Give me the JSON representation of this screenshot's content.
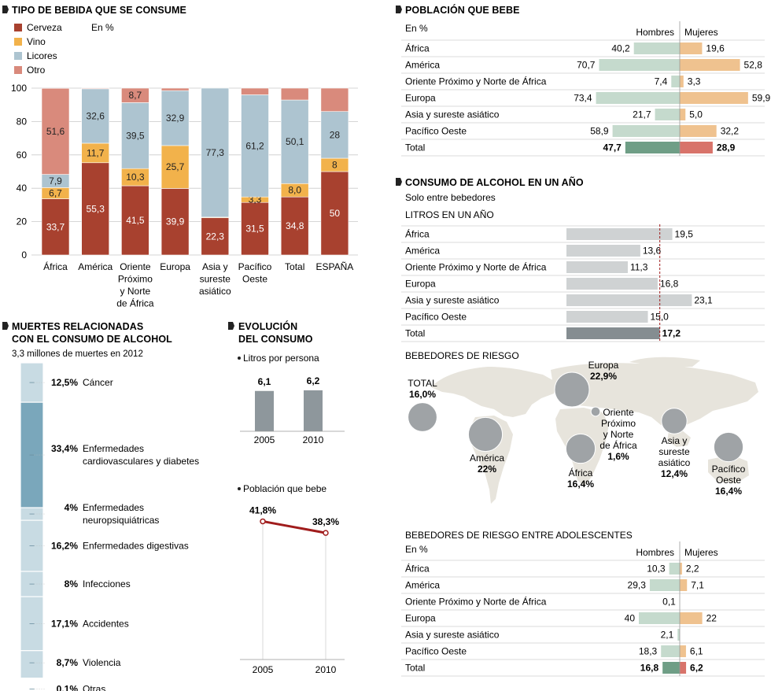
{
  "colors": {
    "cerveza": "#a8412f",
    "vino": "#f2b24b",
    "licores": "#adc4d0",
    "otro": "#d98a7c",
    "hombres": "#c5dacd",
    "hombres_total": "#6f9e86",
    "mujeres": "#efc28f",
    "mujeres_total": "#d8736a",
    "litros": "#cfd2d3",
    "litros_total": "#858d91",
    "map_land": "#e7e4dc",
    "map_bubble": "#9fa3a6",
    "death_light": "#c8dbe3",
    "death_dark": "#7aa7bb",
    "evo_bar": "#8e979c",
    "evo_line": "#a01c1c"
  },
  "tipo": {
    "title": "TIPO DE BEBIDA QUE SE CONSUME",
    "unit": "En %",
    "chart_data": {
      "type": "bar",
      "stacked": true,
      "categories": [
        "África",
        "América",
        "Oriente Próximo y Norte de África",
        "Europa",
        "Asia y sureste asiático",
        "Pacífico Oeste",
        "Total",
        "ESPAÑA"
      ],
      "category_lines": [
        [
          "África"
        ],
        [
          "América"
        ],
        [
          "Oriente",
          "Próximo",
          "y Norte",
          "de África"
        ],
        [
          "Europa"
        ],
        [
          "Asia y",
          "sureste",
          "asiático"
        ],
        [
          "Pacífico",
          "Oeste"
        ],
        [
          "Total"
        ],
        [
          "ESPAÑA"
        ]
      ],
      "series": [
        {
          "name": "Cerveza",
          "values": [
            33.7,
            55.3,
            41.5,
            39.9,
            22.3,
            31.5,
            34.8,
            50
          ],
          "labels": [
            "33,7",
            "55,3",
            "41,5",
            "39,9",
            "22,3",
            "31,5",
            "34,8",
            "50"
          ]
        },
        {
          "name": "Vino",
          "values": [
            6.7,
            11.7,
            10.3,
            25.7,
            0.4,
            3.3,
            8.0,
            8
          ],
          "labels": [
            "6,7",
            "11,7",
            "10,3",
            "25,7",
            "",
            "3,3",
            "8,0",
            "8"
          ]
        },
        {
          "name": "Licores",
          "values": [
            7.9,
            32.6,
            39.5,
            32.9,
            77.3,
            61.2,
            50.1,
            28
          ],
          "labels": [
            "7,9",
            "32,6",
            "39,5",
            "32,9",
            "77,3",
            "61,2",
            "50,1",
            "28"
          ]
        },
        {
          "name": "Otro",
          "values": [
            51.6,
            0.4,
            8.7,
            1.5,
            0,
            4.0,
            7.1,
            14
          ],
          "labels": [
            "51,6",
            "",
            "8,7",
            "",
            "",
            "",
            "",
            ""
          ]
        }
      ],
      "ylim": [
        0,
        100
      ],
      "yticks": [
        0,
        20,
        40,
        60,
        80,
        100
      ]
    }
  },
  "poblacion": {
    "title": "POBLACIÓN QUE BEBE",
    "unit": "En %",
    "col_h": "Hombres",
    "col_m": "Mujeres",
    "chart_data": {
      "type": "bar",
      "categories": [
        "África",
        "América",
        "Oriente Próximo y Norte de África",
        "Europa",
        "Asia y sureste asiático",
        "Pacífico Oeste",
        "Total"
      ],
      "series": [
        {
          "name": "Hombres",
          "values": [
            40.2,
            70.7,
            7.4,
            73.4,
            21.7,
            58.9,
            47.7
          ],
          "labels": [
            "40,2",
            "70,7",
            "7,4",
            "73,4",
            "21,7",
            "58,9",
            "47,7"
          ]
        },
        {
          "name": "Mujeres",
          "values": [
            19.6,
            52.8,
            3.3,
            59.9,
            5.0,
            32.2,
            28.9
          ],
          "labels": [
            "19,6",
            "52,8",
            "3,3",
            "59,9",
            "5,0",
            "32,2",
            "28,9"
          ]
        }
      ]
    }
  },
  "consumo": {
    "title": "CONSUMO DE ALCOHOL EN UN AÑO",
    "subtitle": "Solo entre bebedores",
    "section": "LITROS EN UN AÑO",
    "chart_data": {
      "type": "bar",
      "categories": [
        "África",
        "América",
        "Oriente Próximo y Norte de África",
        "Europa",
        "Asia y sureste asiático",
        "Pacífico Oeste",
        "Total"
      ],
      "values": [
        19.5,
        13.6,
        11.3,
        16.8,
        23.1,
        15.0,
        17.2
      ],
      "labels": [
        "19,5",
        "13,6",
        "11,3",
        "16,8",
        "23,1",
        "15,0",
        "17,2"
      ],
      "reference": 17.2
    }
  },
  "riesgo": {
    "title": "BEBEDORES DE RIESGO",
    "bubbles": [
      {
        "lines": [
          "TOTAL"
        ],
        "value": 16.0,
        "label": "16,0%"
      },
      {
        "lines": [
          "Europa"
        ],
        "value": 22.9,
        "label": "22,9%"
      },
      {
        "lines": [
          "América"
        ],
        "value": 22,
        "label": "22%"
      },
      {
        "lines": [
          "África"
        ],
        "value": 16.4,
        "label": "16,4%"
      },
      {
        "lines": [
          "Oriente",
          "Próximo",
          "y Norte",
          "de África"
        ],
        "value": 1.6,
        "label": "1,6%"
      },
      {
        "lines": [
          "Asia y",
          "sureste",
          "asiático"
        ],
        "value": 12.4,
        "label": "12,4%"
      },
      {
        "lines": [
          "Pacífico",
          "Oeste"
        ],
        "value": 16.4,
        "label": "16,4%"
      }
    ]
  },
  "adolescentes": {
    "title": "BEBEDORES DE RIESGO ENTRE ADOLESCENTES",
    "unit": "En %",
    "col_h": "Hombres",
    "col_m": "Mujeres",
    "chart_data": {
      "type": "bar",
      "categories": [
        "África",
        "América",
        "Oriente Próximo y Norte de África",
        "Europa",
        "Asia y sureste asiático",
        "Pacífico Oeste",
        "Total"
      ],
      "series": [
        {
          "name": "Hombres",
          "values": [
            10.3,
            29.3,
            0.1,
            40,
            2.1,
            18.3,
            16.8
          ],
          "labels": [
            "10,3",
            "29,3",
            "0,1",
            "40",
            "2,1",
            "18,3",
            "16,8"
          ]
        },
        {
          "name": "Mujeres",
          "values": [
            2.2,
            7.1,
            0,
            22,
            0,
            6.1,
            6.2
          ],
          "labels": [
            "2,2",
            "7,1",
            "",
            "22",
            "",
            "6,1",
            "6,2"
          ]
        }
      ]
    }
  },
  "muertes": {
    "title_lines": [
      "MUERTES RELACIONADAS",
      "CON EL CONSUMO DE ALCOHOL"
    ],
    "subtitle": "3,3 millones de muertes en 2012",
    "chart_data": {
      "type": "bar",
      "stacked": true,
      "categories": [
        "Cáncer",
        "Enfermedades cardiovasculares y diabetes",
        "Enfermedades neuropsiquiátricas",
        "Enfermedades digestivas",
        "Infecciones",
        "Accidentes",
        "Violencia",
        "Otras"
      ],
      "category_lines": [
        [
          "Cáncer"
        ],
        [
          "Enfermedades",
          "cardiovasculares y diabetes"
        ],
        [
          "Enfermedades",
          "neuropsiquiátricas"
        ],
        [
          "Enfermedades digestivas"
        ],
        [
          "Infecciones"
        ],
        [
          "Accidentes"
        ],
        [
          "Violencia"
        ],
        [
          "Otras"
        ]
      ],
      "values": [
        12.5,
        33.4,
        4,
        16.2,
        8,
        17.1,
        8.7,
        0.1
      ],
      "labels": [
        "12,5%",
        "33,4%",
        "4%",
        "16,2%",
        "8%",
        "17,1%",
        "8,7%",
        "0,1%"
      ]
    }
  },
  "evolucion": {
    "title_lines": [
      "EVOLUCIÓN",
      "DEL CONSUMO"
    ],
    "litros": {
      "subtitle": "Litros por persona",
      "chart_data": {
        "type": "bar",
        "categories": [
          "2005",
          "2010"
        ],
        "values": [
          6.1,
          6.2
        ],
        "labels": [
          "6,1",
          "6,2"
        ]
      }
    },
    "poblacion": {
      "subtitle": "Población que bebe",
      "chart_data": {
        "type": "line",
        "x": [
          "2005",
          "2010"
        ],
        "values": [
          41.8,
          38.3
        ],
        "labels": [
          "41,8%",
          "38,3%"
        ]
      }
    }
  },
  "legend": [
    {
      "name": "Cerveza",
      "color": "#a8412f"
    },
    {
      "name": "Vino",
      "color": "#f2b24b"
    },
    {
      "name": "Licores",
      "color": "#adc4d0"
    },
    {
      "name": "Otro",
      "color": "#d98a7c"
    }
  ]
}
